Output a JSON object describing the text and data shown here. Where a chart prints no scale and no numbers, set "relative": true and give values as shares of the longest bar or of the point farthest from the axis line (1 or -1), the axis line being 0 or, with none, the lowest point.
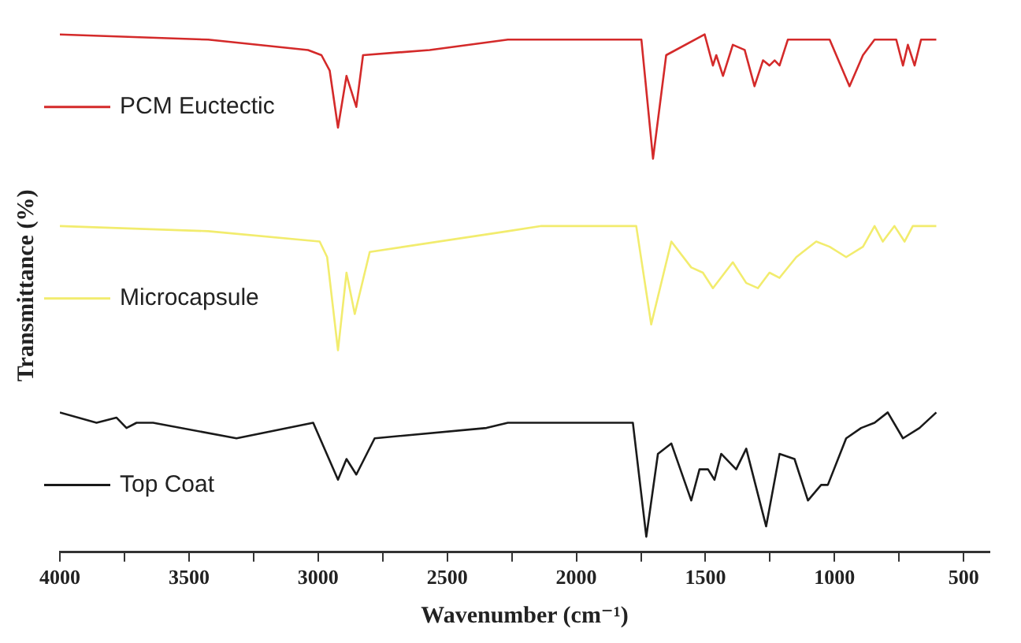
{
  "chart_data": {
    "type": "line",
    "relative": true,
    "legend": "left",
    "xlabel": "Wavenumber (cm⁻¹)",
    "ylabel": "Transmittance (%)",
    "xlim": [
      4000,
      400
    ],
    "xticks": [
      4000,
      {
        "value": 3750,
        "label": null
      },
      3500,
      {
        "value": 3250,
        "label": null
      },
      3000,
      {
        "value": 2750,
        "label": null
      },
      2500,
      {
        "value": 2250,
        "label": null
      },
      2000,
      {
        "value": 1750,
        "label": null
      },
      1500,
      {
        "value": 1250,
        "label": null
      },
      1000,
      {
        "value": 750,
        "label": null
      },
      500
    ],
    "series": [
      {
        "name": "PCM Euctectic",
        "color": "#d42a2a",
        "x": [
          4000,
          3426,
          3039,
          2987,
          2955,
          2923,
          2890,
          2852,
          2826,
          2568,
          2265,
          2135,
          1748,
          1703,
          1652,
          1503,
          1471,
          1458,
          1432,
          1394,
          1348,
          1310,
          1277,
          1252,
          1232,
          1213,
          1181,
          1103,
          1019,
          942,
          890,
          845,
          761,
          735,
          716,
          690,
          665,
          606
        ],
        "values": [
          1.0,
          0.99,
          0.97,
          0.96,
          0.93,
          0.82,
          0.92,
          0.86,
          0.96,
          0.97,
          0.99,
          0.99,
          0.99,
          0.76,
          0.96,
          1.0,
          0.94,
          0.96,
          0.92,
          0.98,
          0.97,
          0.9,
          0.95,
          0.94,
          0.95,
          0.94,
          0.99,
          0.99,
          0.99,
          0.9,
          0.96,
          0.99,
          0.99,
          0.94,
          0.98,
          0.94,
          0.99,
          0.99
        ]
      },
      {
        "name": "Microcapsule",
        "color": "#f2ec6e",
        "x": [
          4000,
          3426,
          2994,
          2965,
          2923,
          2890,
          2858,
          2800,
          2265,
          2135,
          1768,
          1710,
          1632,
          1555,
          1510,
          1471,
          1394,
          1342,
          1297,
          1252,
          1213,
          1148,
          1071,
          1019,
          955,
          890,
          845,
          813,
          768,
          729,
          697,
          606
        ],
        "values": [
          0.63,
          0.62,
          0.6,
          0.57,
          0.39,
          0.54,
          0.46,
          0.58,
          0.62,
          0.63,
          0.63,
          0.44,
          0.6,
          0.55,
          0.54,
          0.51,
          0.56,
          0.52,
          0.51,
          0.54,
          0.53,
          0.57,
          0.6,
          0.59,
          0.57,
          0.59,
          0.63,
          0.6,
          0.63,
          0.6,
          0.63,
          0.63
        ]
      },
      {
        "name": "Top Coat",
        "color": "#1a1a1a",
        "x": [
          4000,
          3858,
          3781,
          3742,
          3703,
          3639,
          3316,
          3019,
          2923,
          2890,
          2852,
          2781,
          2348,
          2265,
          2135,
          1832,
          1781,
          1729,
          1684,
          1632,
          1555,
          1523,
          1490,
          1465,
          1439,
          1381,
          1342,
          1265,
          1213,
          1155,
          1103,
          1052,
          1026,
          955,
          897,
          845,
          794,
          735,
          671,
          606
        ],
        "values": [
          0.27,
          0.25,
          0.26,
          0.24,
          0.25,
          0.25,
          0.22,
          0.25,
          0.14,
          0.18,
          0.15,
          0.22,
          0.24,
          0.25,
          0.25,
          0.25,
          0.25,
          0.03,
          0.19,
          0.21,
          0.1,
          0.16,
          0.16,
          0.14,
          0.19,
          0.16,
          0.2,
          0.05,
          0.19,
          0.18,
          0.1,
          0.13,
          0.13,
          0.22,
          0.24,
          0.25,
          0.27,
          0.22,
          0.24,
          0.27
        ]
      }
    ]
  }
}
